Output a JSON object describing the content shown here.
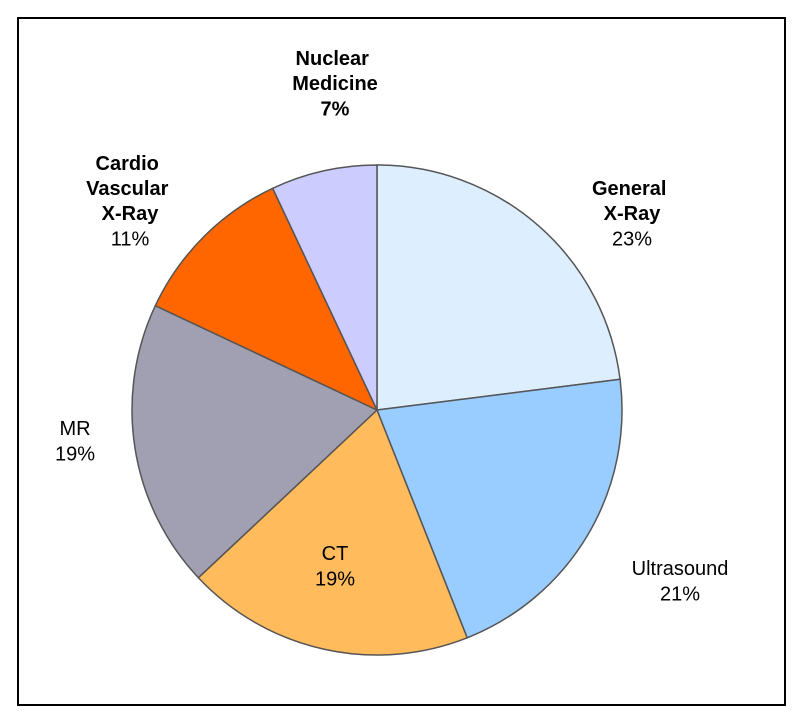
{
  "chart_data": {
    "type": "pie",
    "categories": [
      "General X-Ray",
      "Ultrasound",
      "CT",
      "MR",
      "Cardio Vascular X-Ray",
      "Nuclear Medicine"
    ],
    "values": [
      23,
      21,
      19,
      19,
      11,
      7
    ],
    "value_labels": [
      "23%",
      "21%",
      "19%",
      "19%",
      "11%",
      "7%"
    ],
    "colors": [
      "#ddeeff",
      "#99ccff",
      "#ffbb5c",
      "#a0a0b2",
      "#ff6600",
      "#ccccff"
    ]
  }
}
